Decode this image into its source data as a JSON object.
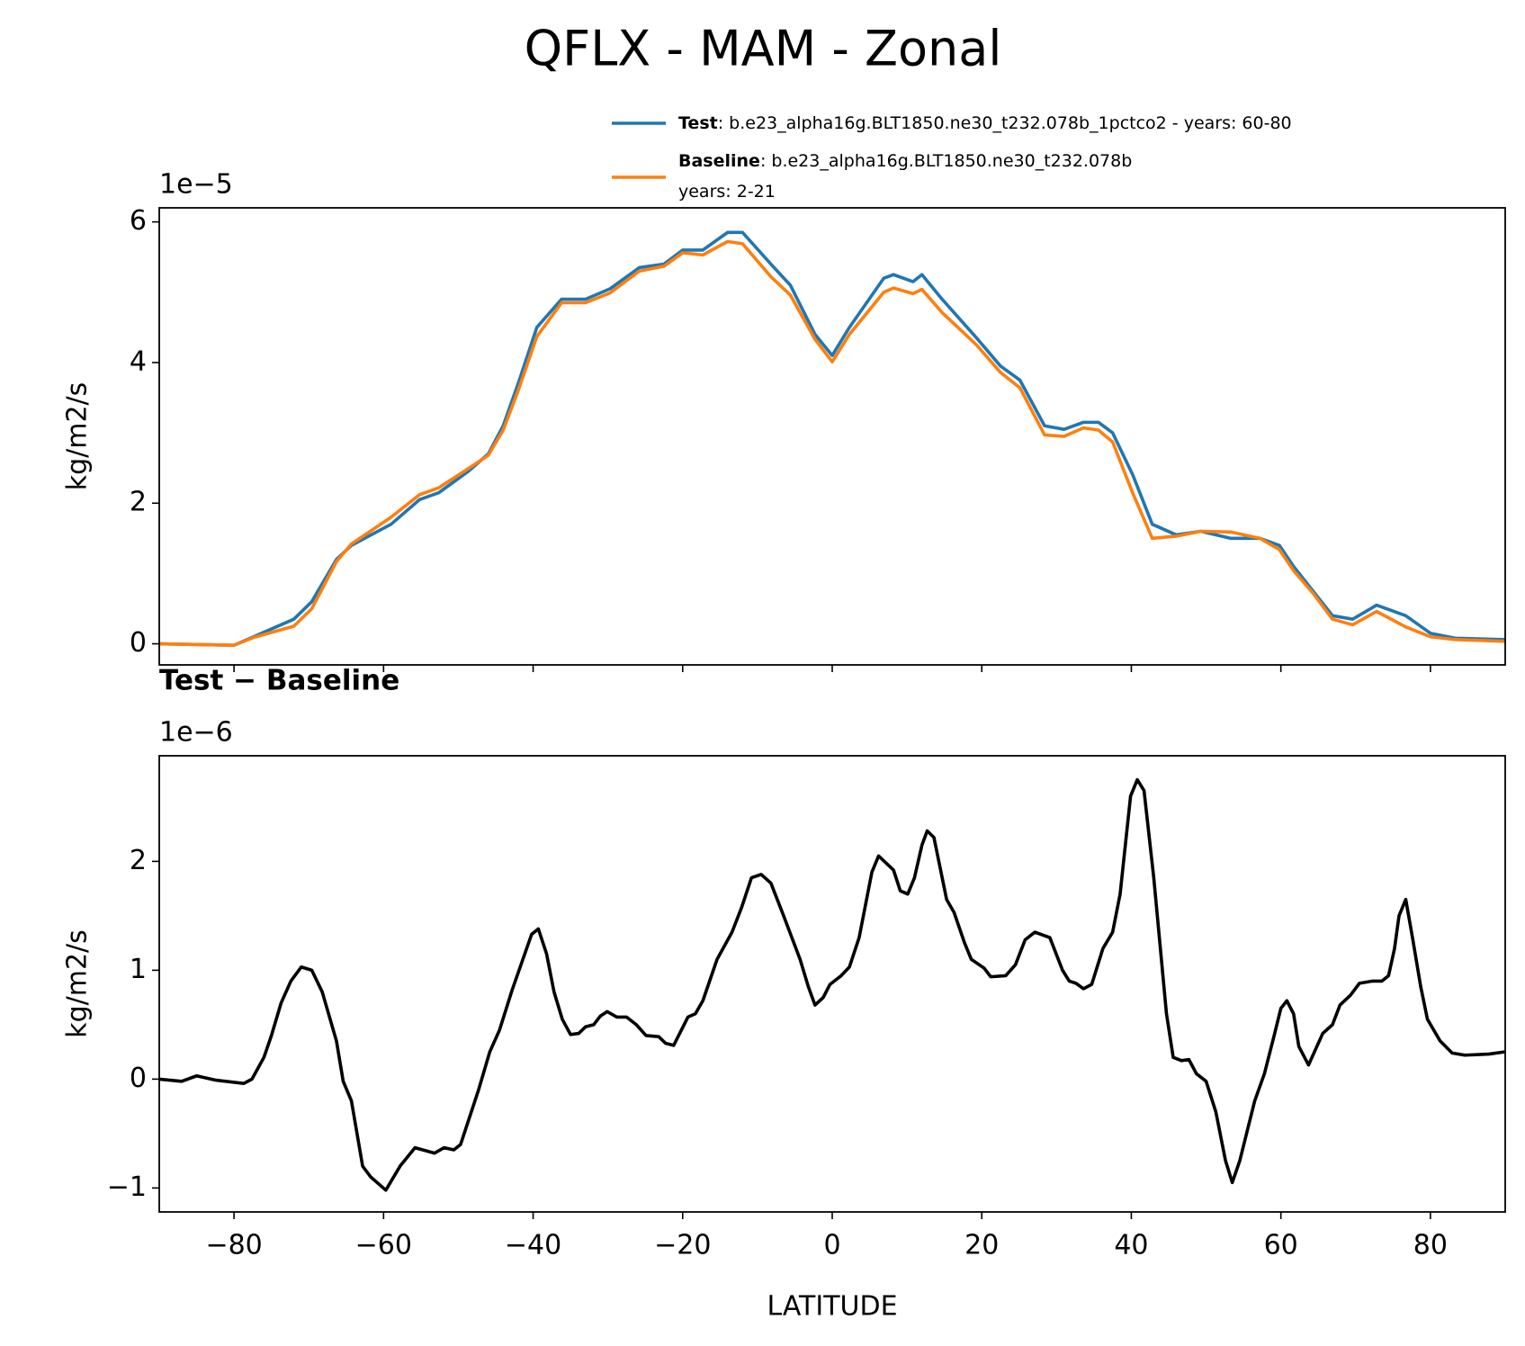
{
  "title": "QFLX - MAM - Zonal",
  "chart_data": [
    {
      "type": "line",
      "offset_label": "1e−5",
      "ylabel": "kg/m2/s",
      "legend": "upper right",
      "x": [
        -90,
        -80,
        -77.4,
        -72,
        -69.6,
        -66.3,
        -64.3,
        -59,
        -55.2,
        -52.6,
        -48.7,
        -46,
        -44,
        -42,
        -39.5,
        -36.2,
        -33,
        -29.7,
        -25.8,
        -22.5,
        -20,
        -17.3,
        -14,
        -12,
        -8.2,
        -5.6,
        -2.3,
        0,
        2.3,
        6.9,
        8.2,
        10.8,
        12,
        14.7,
        19.3,
        22.5,
        25.1,
        28.4,
        31,
        33.6,
        35.6,
        37.5,
        40.2,
        42.8,
        46,
        49.3,
        53.3,
        57.2,
        59.8,
        61.7,
        64.3,
        66.9,
        69.6,
        72.8,
        76.7,
        80,
        83.3,
        89.9
      ],
      "series": [
        {
          "name": "Test",
          "description": [
            ": b.e23_alpha16g.BLT1850.ne30_t232.078b_1pctco2 - years: 60-80"
          ],
          "color": "#1f77b4",
          "values": [
            0,
            -0.02,
            0.1,
            0.35,
            0.6,
            1.2,
            1.4,
            1.7,
            2.05,
            2.15,
            2.45,
            2.7,
            3.1,
            3.7,
            4.5,
            4.9,
            4.9,
            5.05,
            5.35,
            5.4,
            5.6,
            5.6,
            5.85,
            5.85,
            5.4,
            5.1,
            4.4,
            4.1,
            4.5,
            5.2,
            5.25,
            5.15,
            5.25,
            4.9,
            4.35,
            3.95,
            3.75,
            3.1,
            3.05,
            3.15,
            3.15,
            3.0,
            2.4,
            1.7,
            1.55,
            1.6,
            1.5,
            1.5,
            1.4,
            1.1,
            0.75,
            0.4,
            0.35,
            0.55,
            0.4,
            0.15,
            0.08,
            0.06
          ]
        },
        {
          "name": "Baseline",
          "description": [
            ": b.e23_alpha16g.BLT1850.ne30_t232.078b",
            "years: 2-21"
          ],
          "color": "#ff7f0e",
          "values": [
            0,
            -0.02,
            0.09,
            0.25,
            0.5,
            1.17,
            1.42,
            1.8,
            2.12,
            2.22,
            2.49,
            2.68,
            3.04,
            3.6,
            4.37,
            4.85,
            4.85,
            4.99,
            5.3,
            5.37,
            5.56,
            5.53,
            5.72,
            5.69,
            5.22,
            4.96,
            4.33,
            4.01,
            4.4,
            5.0,
            5.06,
            4.98,
            5.04,
            4.71,
            4.25,
            3.86,
            3.64,
            2.97,
            2.95,
            3.07,
            3.04,
            2.87,
            2.14,
            1.5,
            1.53,
            1.6,
            1.59,
            1.5,
            1.34,
            1.04,
            0.72,
            0.35,
            0.27,
            0.46,
            0.24,
            0.1,
            0.06,
            0.035
          ]
        }
      ],
      "xlim": [
        -90,
        90
      ],
      "ylim": [
        -0.3,
        6.2
      ],
      "xticks": [
        -80,
        -60,
        -40,
        -20,
        0,
        20,
        40,
        60,
        80
      ],
      "yticks": [
        0,
        2,
        4,
        6
      ]
    },
    {
      "type": "line",
      "title": "Test − Baseline",
      "offset_label": "1e−6",
      "ylabel": "kg/m2/s",
      "xlabel": "LATITUDE",
      "color": "#000000",
      "x": [
        -90,
        -87,
        -85,
        -82.4,
        -78.7,
        -77.6,
        -76,
        -75,
        -73.7,
        -72.4,
        -71,
        -69.6,
        -68.2,
        -66.3,
        -65.4,
        -64.3,
        -62.8,
        -61.7,
        -59.7,
        -57.8,
        -55.8,
        -53.2,
        -51.9,
        -50.6,
        -49.7,
        -47.3,
        -45.8,
        -44.5,
        -42.8,
        -40.2,
        -39.3,
        -38.2,
        -37.2,
        -36.1,
        -35,
        -33.9,
        -33,
        -31.9,
        -31,
        -30.1,
        -28.8,
        -27.5,
        -26.2,
        -24.9,
        -23.2,
        -22.3,
        -21.2,
        -19.3,
        -18.3,
        -17.3,
        -15.4,
        -13.4,
        -12.1,
        -10.8,
        -9.5,
        -8.2,
        -6.5,
        -4.3,
        -3.2,
        -2.3,
        -1.2,
        -0.3,
        1.2,
        2.3,
        3.6,
        5.3,
        6.2,
        8.2,
        9.1,
        10.1,
        11,
        12,
        12.7,
        13.6,
        15.3,
        16.3,
        17.7,
        18.6,
        20.3,
        21.2,
        23.2,
        24.5,
        25.8,
        27.1,
        29.1,
        30.8,
        31.7,
        32.6,
        33.6,
        34.7,
        36.2,
        37.5,
        38.5,
        39.9,
        40.8,
        41.7,
        43,
        44.7,
        45.6,
        46.7,
        47.7,
        48.7,
        50,
        51.3,
        52.6,
        53.5,
        54.5,
        56.5,
        57.8,
        59.1,
        60,
        60.8,
        61.7,
        62.4,
        63.7,
        65.6,
        66.9,
        67.9,
        69.3,
        70.5,
        72.2,
        73.5,
        74.4,
        75.2,
        75.8,
        76.7,
        77.6,
        78.7,
        79.6,
        81.3,
        82.9,
        84.6,
        87.8,
        89.9
      ],
      "values": [
        0,
        -0.02,
        0.03,
        -0.01,
        -0.04,
        0,
        0.2,
        0.4,
        0.7,
        0.9,
        1.03,
        1.0,
        0.8,
        0.35,
        -0.02,
        -0.2,
        -0.8,
        -0.9,
        -1.02,
        -0.8,
        -0.63,
        -0.68,
        -0.63,
        -0.65,
        -0.6,
        -0.1,
        0.25,
        0.45,
        0.82,
        1.33,
        1.38,
        1.15,
        0.8,
        0.55,
        0.41,
        0.42,
        0.48,
        0.5,
        0.58,
        0.62,
        0.57,
        0.57,
        0.5,
        0.4,
        0.39,
        0.33,
        0.31,
        0.57,
        0.6,
        0.72,
        1.1,
        1.35,
        1.58,
        1.85,
        1.88,
        1.8,
        1.5,
        1.1,
        0.85,
        0.68,
        0.75,
        0.87,
        0.95,
        1.03,
        1.3,
        1.9,
        2.05,
        1.92,
        1.73,
        1.7,
        1.85,
        2.15,
        2.28,
        2.22,
        1.65,
        1.53,
        1.25,
        1.1,
        1.02,
        0.94,
        0.95,
        1.05,
        1.28,
        1.35,
        1.3,
        1.0,
        0.9,
        0.88,
        0.83,
        0.87,
        1.2,
        1.35,
        1.7,
        2.6,
        2.75,
        2.65,
        1.85,
        0.6,
        0.2,
        0.17,
        0.18,
        0.05,
        -0.02,
        -0.3,
        -0.75,
        -0.95,
        -0.75,
        -0.2,
        0.05,
        0.4,
        0.65,
        0.72,
        0.6,
        0.3,
        0.13,
        0.42,
        0.5,
        0.68,
        0.77,
        0.88,
        0.9,
        0.9,
        0.95,
        1.2,
        1.5,
        1.65,
        1.3,
        0.85,
        0.55,
        0.35,
        0.24,
        0.22,
        0.23,
        0.25
      ],
      "xlim": [
        -90,
        90
      ],
      "ylim": [
        -1.22,
        2.97
      ],
      "xticks": [
        {
          "value": -80,
          "label": "−80"
        },
        {
          "value": -60,
          "label": "−60"
        },
        {
          "value": -40,
          "label": "−40"
        },
        {
          "value": -20,
          "label": "−20"
        },
        0,
        20,
        40,
        60,
        80
      ],
      "yticks": [
        {
          "value": -1,
          "label": "−1"
        },
        0,
        1,
        2
      ]
    }
  ]
}
